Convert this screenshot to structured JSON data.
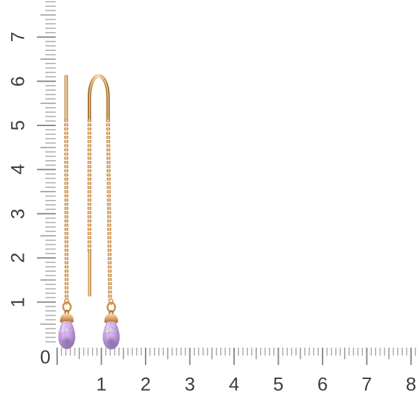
{
  "photo": {
    "subject": "Gold threader chain earrings with purple briolette gemstone drops, photographed on a white background beside centimeter rulers",
    "background": "#ffffff"
  },
  "rulers": {
    "origin_label": "0",
    "vertical": {
      "labels": [
        "1",
        "2",
        "3",
        "4",
        "5",
        "6",
        "7"
      ]
    },
    "horizontal": {
      "labels": [
        "1",
        "2",
        "3",
        "4",
        "5",
        "6",
        "7",
        "8"
      ]
    },
    "colors": {
      "tick_minor": "#a8a8a8",
      "tick_half": "#9c9c9c",
      "tick_major": "#8a8a8a",
      "num": "#3e3e3e"
    }
  },
  "earrings": {
    "left_view": "side view: straight ear pin over hanging chain with gemstone drop",
    "right_view": "front view: U-shaped threader bar, chain legs, hanging pin and gemstone drop",
    "colors": {
      "gold_main": "#d89f60",
      "gold_dark": "#b0742f",
      "gold_light": "#f7e0b4",
      "gold_deep": "#96621f",
      "stone_light": "#ecdcf7",
      "stone_mid": "#c8a3e3",
      "stone_deep": "#9a7bba",
      "stone_shadow": "#6e5c80",
      "facet_line": "#a77fc9"
    }
  }
}
